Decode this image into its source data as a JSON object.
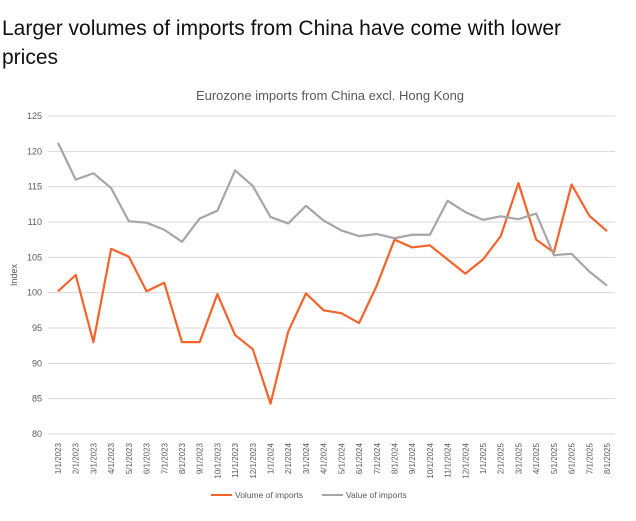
{
  "headline": "Larger volumes of imports from China have come with lower prices",
  "chart_data": {
    "type": "line",
    "title": "Eurozone imports from China excl. Hong Kong",
    "xlabel": "",
    "ylabel": "Index",
    "ylim": [
      80,
      125
    ],
    "yticks": [
      80,
      85,
      90,
      95,
      100,
      105,
      110,
      115,
      120,
      125
    ],
    "grid": true,
    "legend": "bottom",
    "categories": [
      "1/1/2023",
      "2/1/2023",
      "3/1/2023",
      "4/1/2023",
      "5/1/2023",
      "6/1/2023",
      "7/1/2023",
      "8/1/2023",
      "9/1/2023",
      "10/1/2023",
      "11/1/2023",
      "12/1/2023",
      "1/1/2024",
      "2/1/2024",
      "3/1/2024",
      "4/1/2024",
      "5/1/2024",
      "6/1/2024",
      "7/1/2024",
      "8/1/2024",
      "9/1/2024",
      "10/1/2024",
      "11/1/2024",
      "12/1/2024",
      "1/1/2025",
      "2/1/2025",
      "3/1/2025",
      "4/1/2025",
      "5/1/2025",
      "6/1/2025",
      "7/1/2025",
      "8/1/2025"
    ],
    "series": [
      {
        "name": "Volume of imports",
        "color": "#f4632a",
        "values": [
          100.2,
          102.5,
          93,
          106.2,
          105.1,
          100.2,
          101.4,
          93,
          93,
          99.8,
          94,
          92,
          84.3,
          94.5,
          99.9,
          97.5,
          97.1,
          95.7,
          101,
          107.5,
          106.4,
          106.7,
          104.7,
          102.7,
          104.7,
          108,
          115.5,
          107.5,
          105.7,
          115.3,
          110.9,
          108.7
        ]
      },
      {
        "name": "Value of imports",
        "color": "#a6a6a6",
        "values": [
          121.2,
          116,
          116.9,
          114.8,
          110.1,
          109.9,
          108.9,
          107.2,
          110.5,
          111.6,
          117.3,
          115.1,
          110.7,
          109.8,
          112.3,
          110.2,
          108.8,
          108,
          108.3,
          107.7,
          108.2,
          108.2,
          113,
          111.4,
          110.3,
          110.8,
          110.4,
          111.2,
          105.3,
          105.5,
          103,
          101
        ]
      }
    ]
  }
}
